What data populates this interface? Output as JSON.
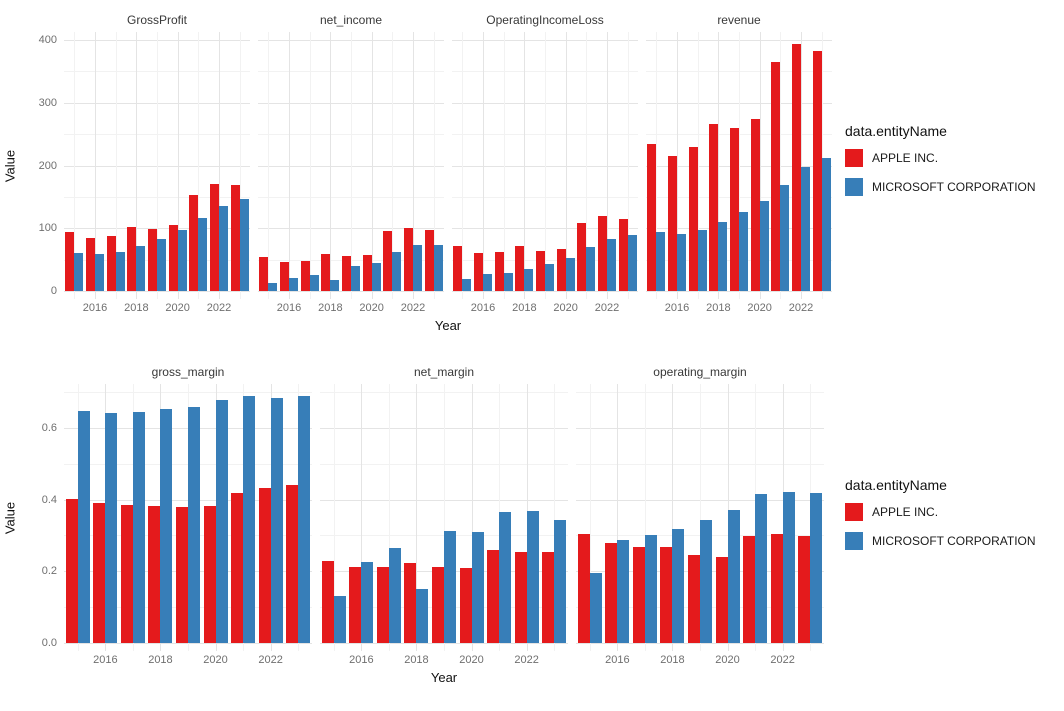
{
  "legend": {
    "title": "data.entityName",
    "items": [
      {
        "label": "APPLE INC.",
        "color": "#e41a1c"
      },
      {
        "label": "MICROSOFT CORPORATION",
        "color": "#377eb8"
      }
    ]
  },
  "chart_data": {
    "type": "bar",
    "layout": "two rows of faceted grouped (dodged) bar panels, shared Year x-axis, legend right of each row",
    "x": [
      2015,
      2016,
      2017,
      2018,
      2019,
      2020,
      2021,
      2022,
      2023
    ],
    "x_major_ticks": [
      2016,
      2018,
      2020,
      2022
    ],
    "x_tick_labels": [
      "2016",
      "2018",
      "2020",
      "2022"
    ],
    "xlabel": "Year",
    "legend_title": "data.entityName",
    "series_names": [
      "APPLE INC.",
      "MICROSOFT CORPORATION"
    ],
    "series_colors": [
      "#e41a1c",
      "#377eb8"
    ],
    "grid": "light grey major/minor gridlines on white background, no axis lines",
    "rows": [
      {
        "ylabel": "Value",
        "ylim": [
          -13,
          413
        ],
        "yticks": [
          0,
          100,
          200,
          300,
          400
        ],
        "ytick_labels": [
          "0",
          "100",
          "200",
          "300",
          "400"
        ],
        "minor_yticks": [
          50,
          150,
          250,
          350
        ],
        "facets": [
          {
            "title": "GrossProfit",
            "series": [
              {
                "name": "APPLE INC.",
                "values": [
                  93.6,
                  84.3,
                  88.2,
                  101.8,
                  98.4,
                  104.9,
                  152.8,
                  170.8,
                  169.1
                ]
              },
              {
                "name": "MICROSOFT CORPORATION",
                "values": [
                  60.5,
                  58.4,
                  62.3,
                  72.0,
                  82.9,
                  96.9,
                  115.9,
                  135.6,
                  146.1
                ]
              }
            ]
          },
          {
            "title": "net_income",
            "series": [
              {
                "name": "APPLE INC.",
                "values": [
                  53.4,
                  45.7,
                  48.4,
                  59.5,
                  55.3,
                  57.4,
                  94.7,
                  99.8,
                  97.0
                ]
              },
              {
                "name": "MICROSOFT CORPORATION",
                "values": [
                  12.2,
                  20.5,
                  25.5,
                  16.6,
                  39.2,
                  44.3,
                  61.3,
                  72.7,
                  72.4
                ]
              }
            ]
          },
          {
            "title": "OperatingIncomeLoss",
            "series": [
              {
                "name": "APPLE INC.",
                "values": [
                  71.2,
                  60.0,
                  61.3,
                  70.9,
                  63.9,
                  66.3,
                  108.9,
                  119.4,
                  114.3
                ]
              },
              {
                "name": "MICROSOFT CORPORATION",
                "values": [
                  18.2,
                  26.1,
                  29.0,
                  35.1,
                  43.0,
                  53.0,
                  69.9,
                  83.4,
                  88.5
                ]
              }
            ]
          },
          {
            "title": "revenue",
            "series": [
              {
                "name": "APPLE INC.",
                "values": [
                  233.7,
                  215.6,
                  229.2,
                  265.6,
                  260.2,
                  274.5,
                  365.8,
                  394.3,
                  383.3
                ]
              },
              {
                "name": "MICROSOFT CORPORATION",
                "values": [
                  93.6,
                  91.2,
                  96.6,
                  110.4,
                  125.8,
                  143.0,
                  168.1,
                  198.3,
                  211.9
                ]
              }
            ]
          }
        ]
      },
      {
        "ylabel": "Value",
        "ylim": [
          -0.022,
          0.722
        ],
        "yticks": [
          0,
          0.2,
          0.4,
          0.6
        ],
        "ytick_labels": [
          "0.0",
          "0.2",
          "0.4",
          "0.6"
        ],
        "minor_yticks": [
          0.1,
          0.3,
          0.5,
          0.7
        ],
        "facets": [
          {
            "title": "gross_margin",
            "series": [
              {
                "name": "APPLE INC.",
                "values": [
                  0.401,
                  0.391,
                  0.385,
                  0.383,
                  0.378,
                  0.382,
                  0.418,
                  0.433,
                  0.441
                ]
              },
              {
                "name": "MICROSOFT CORPORATION",
                "values": [
                  0.646,
                  0.64,
                  0.645,
                  0.652,
                  0.659,
                  0.678,
                  0.689,
                  0.684,
                  0.689
                ]
              }
            ]
          },
          {
            "title": "net_margin",
            "series": [
              {
                "name": "APPLE INC.",
                "values": [
                  0.228,
                  0.212,
                  0.211,
                  0.224,
                  0.212,
                  0.209,
                  0.259,
                  0.253,
                  0.253
                ]
              },
              {
                "name": "MICROSOFT CORPORATION",
                "values": [
                  0.13,
                  0.225,
                  0.264,
                  0.15,
                  0.312,
                  0.31,
                  0.365,
                  0.367,
                  0.342
                ]
              }
            ]
          },
          {
            "title": "operating_margin",
            "series": [
              {
                "name": "APPLE INC.",
                "values": [
                  0.305,
                  0.278,
                  0.267,
                  0.267,
                  0.246,
                  0.241,
                  0.298,
                  0.303,
                  0.298
                ]
              },
              {
                "name": "MICROSOFT CORPORATION",
                "values": [
                  0.194,
                  0.287,
                  0.3,
                  0.318,
                  0.342,
                  0.371,
                  0.416,
                  0.421,
                  0.418
                ]
              }
            ]
          }
        ]
      }
    ]
  }
}
